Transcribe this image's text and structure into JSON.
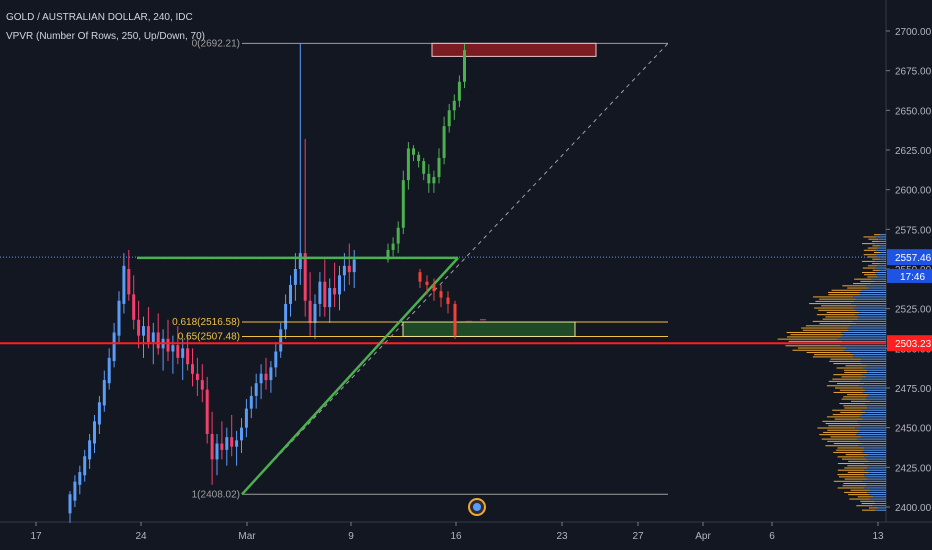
{
  "header": {
    "symbol_line": "GOLD / AUSTRALIAN DOLLAR, 240, IDC",
    "indicator_line": "VPVR (Number Of Rows, 250, Up/Down, 70)"
  },
  "colors": {
    "background": "#131722",
    "up": "#5b9cf6",
    "down": "#f23f6c",
    "projection": "#4caf50",
    "projection_down": "#f44336",
    "vp_up": "#5b9cf6",
    "vp_down": "#f0a830",
    "support_line": "#ff1f1f",
    "fib_line": "#f0c040",
    "trend_line": "#4caf50"
  },
  "chart_data": {
    "type": "candlestick",
    "y_axis_ticks": [
      "2700.00",
      "2675.00",
      "2650.00",
      "2625.00",
      "2600.00",
      "2575.00",
      "2550.00",
      "2525.00",
      "2500.00",
      "2475.00",
      "2450.00",
      "2425.00",
      "2400.00"
    ],
    "ylim": [
      2396,
      2712
    ],
    "x_axis_ticks": [
      "17",
      "24",
      "Mar",
      "9",
      "16",
      "23",
      "27",
      "Apr",
      "6",
      "13"
    ],
    "price_labels": [
      {
        "text": "2557.46",
        "value": 2557.46
      },
      {
        "text": "17:46",
        "value": 2545
      },
      {
        "text": "2503.23",
        "value": 2503.23
      }
    ],
    "fib_labels": [
      {
        "text": "0(2692.21)",
        "value": 2692.21
      },
      {
        "text": "0.618(2516.58)",
        "value": 2516.58
      },
      {
        "text": "0.65(2507.48)",
        "value": 2507.48
      },
      {
        "text": "1(2408.02)",
        "value": 2408.02
      }
    ],
    "candles": [
      [
        2396,
        2410,
        2390,
        2408
      ],
      [
        2404,
        2420,
        2400,
        2416
      ],
      [
        2414,
        2426,
        2408,
        2422
      ],
      [
        2420,
        2436,
        2416,
        2432
      ],
      [
        2430,
        2446,
        2424,
        2442
      ],
      [
        2440,
        2458,
        2434,
        2454
      ],
      [
        2452,
        2470,
        2446,
        2466
      ],
      [
        2464,
        2486,
        2460,
        2480
      ],
      [
        2478,
        2500,
        2474,
        2494
      ],
      [
        2492,
        2516,
        2488,
        2510
      ],
      [
        2508,
        2536,
        2504,
        2530
      ],
      [
        2528,
        2560,
        2522,
        2552
      ],
      [
        2550,
        2562,
        2530,
        2534
      ],
      [
        2534,
        2546,
        2512,
        2518
      ],
      [
        2518,
        2530,
        2500,
        2508
      ],
      [
        2508,
        2520,
        2494,
        2514
      ],
      [
        2514,
        2526,
        2500,
        2504
      ],
      [
        2504,
        2516,
        2490,
        2510
      ],
      [
        2510,
        2522,
        2496,
        2500
      ],
      [
        2500,
        2512,
        2486,
        2506
      ],
      [
        2506,
        2518,
        2492,
        2498
      ],
      [
        2498,
        2508,
        2484,
        2502
      ],
      [
        2502,
        2514,
        2490,
        2494
      ],
      [
        2494,
        2506,
        2480,
        2500
      ],
      [
        2500,
        2510,
        2486,
        2490
      ],
      [
        2490,
        2500,
        2476,
        2484
      ],
      [
        2484,
        2494,
        2470,
        2480
      ],
      [
        2480,
        2490,
        2466,
        2474
      ],
      [
        2474,
        2482,
        2440,
        2446
      ],
      [
        2446,
        2460,
        2414,
        2430
      ],
      [
        2430,
        2446,
        2420,
        2440
      ],
      [
        2440,
        2454,
        2430,
        2436
      ],
      [
        2436,
        2450,
        2426,
        2444
      ],
      [
        2444,
        2458,
        2432,
        2438
      ],
      [
        2438,
        2448,
        2426,
        2442
      ],
      [
        2442,
        2456,
        2434,
        2450
      ],
      [
        2450,
        2468,
        2444,
        2462
      ],
      [
        2462,
        2476,
        2456,
        2470
      ],
      [
        2470,
        2484,
        2462,
        2478
      ],
      [
        2478,
        2490,
        2468,
        2484
      ],
      [
        2484,
        2494,
        2474,
        2480
      ],
      [
        2480,
        2492,
        2472,
        2488
      ],
      [
        2488,
        2504,
        2482,
        2498
      ],
      [
        2498,
        2516,
        2494,
        2512
      ],
      [
        2512,
        2534,
        2506,
        2528
      ],
      [
        2528,
        2546,
        2520,
        2540
      ],
      [
        2540,
        2560,
        2530,
        2550
      ],
      [
        2550,
        2692,
        2540,
        2560
      ],
      [
        2560,
        2632,
        2520,
        2530
      ],
      [
        2530,
        2548,
        2508,
        2516
      ],
      [
        2516,
        2534,
        2506,
        2528
      ],
      [
        2528,
        2548,
        2520,
        2542
      ],
      [
        2542,
        2556,
        2520,
        2526
      ],
      [
        2526,
        2544,
        2516,
        2538
      ],
      [
        2538,
        2554,
        2526,
        2534
      ],
      [
        2534,
        2552,
        2524,
        2546
      ],
      [
        2546,
        2560,
        2536,
        2552
      ],
      [
        2552,
        2566,
        2540,
        2548
      ],
      [
        2548,
        2562,
        2538,
        2556
      ]
    ],
    "projection_green": [
      [
        2556,
        2566,
        2554,
        2562
      ],
      [
        2562,
        2570,
        2558,
        2566
      ],
      [
        2566,
        2580,
        2560,
        2576
      ],
      [
        2576,
        2612,
        2572,
        2606
      ],
      [
        2606,
        2630,
        2600,
        2626
      ],
      [
        2626,
        2628,
        2618,
        2622
      ],
      [
        2622,
        2624,
        2614,
        2618
      ],
      [
        2618,
        2620,
        2606,
        2610
      ],
      [
        2610,
        2616,
        2598,
        2604
      ],
      [
        2604,
        2612,
        2598,
        2608
      ],
      [
        2608,
        2626,
        2604,
        2620
      ],
      [
        2620,
        2646,
        2616,
        2640
      ],
      [
        2640,
        2654,
        2636,
        2650
      ],
      [
        2650,
        2660,
        2644,
        2656
      ],
      [
        2656,
        2672,
        2652,
        2668
      ],
      [
        2668,
        2692,
        2664,
        2688
      ]
    ],
    "projection_red": [
      [
        2548,
        2550,
        2538,
        2542
      ],
      [
        2542,
        2546,
        2534,
        2540
      ],
      [
        2540,
        2544,
        2530,
        2536
      ],
      [
        2536,
        2540,
        2526,
        2532
      ],
      [
        2532,
        2536,
        2522,
        2528
      ],
      [
        2528,
        2530,
        2506,
        2508
      ]
    ],
    "volume_profile": "volume-by-price histogram on right side, blue (up) and orange (down), peak near 2505"
  }
}
